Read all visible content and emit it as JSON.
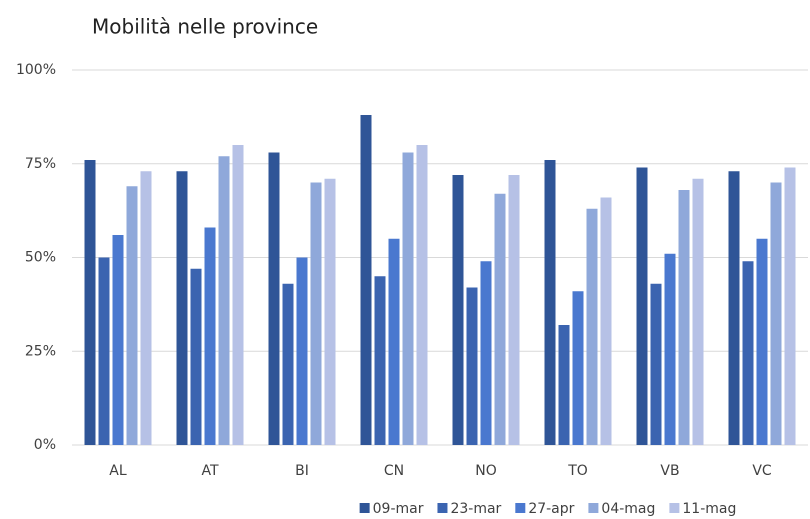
{
  "chart_data": {
    "type": "bar",
    "title": "Mobilità nelle province",
    "categories": [
      "AL",
      "AT",
      "BI",
      "CN",
      "NO",
      "TO",
      "VB",
      "VC"
    ],
    "series": [
      {
        "name": "09-mar",
        "color": "#2f5597",
        "values": [
          76,
          73,
          78,
          88,
          72,
          76,
          74,
          73
        ]
      },
      {
        "name": "23-mar",
        "color": "#3b64b0",
        "values": [
          50,
          47,
          43,
          45,
          42,
          32,
          43,
          49
        ]
      },
      {
        "name": "27-apr",
        "color": "#4a78cf",
        "values": [
          56,
          58,
          50,
          55,
          49,
          41,
          51,
          55
        ]
      },
      {
        "name": "04-mag",
        "color": "#8fa8da",
        "values": [
          69,
          77,
          70,
          78,
          67,
          63,
          68,
          70
        ]
      },
      {
        "name": "11-mag",
        "color": "#b6c1e6",
        "values": [
          73,
          80,
          71,
          80,
          72,
          66,
          71,
          74
        ]
      }
    ],
    "ylim": [
      0,
      100
    ],
    "yticks": [
      {
        "value": 0,
        "label": "0%"
      },
      {
        "value": 25,
        "label": "25%"
      },
      {
        "value": 50,
        "label": "50%"
      },
      {
        "value": 75,
        "label": "75%"
      },
      {
        "value": 100,
        "label": "100%"
      }
    ],
    "grid": true,
    "legend": "bottom"
  }
}
